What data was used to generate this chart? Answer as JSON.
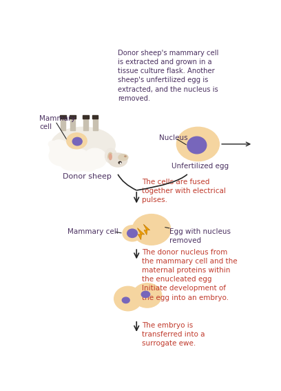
{
  "bg_color": "#ffffff",
  "purple": "#4a3060",
  "red": "#c0392b",
  "egg_outer": "#f5d5a0",
  "nuc_color": "#7766bb",
  "lightning_color": "#f0a000",
  "arrow_color": "#222222",
  "top_text": "Donor sheep's mammary cell\nis extracted and grown in a\ntissue culture flask. Another\nsheep's unfertilized egg is\nextracted, and the nucleus is\nremoved.",
  "mammary_cell_label": "Mammary\ncell",
  "donor_sheep_label": "Donor sheep",
  "nucleus_label": "Nucleus",
  "unfertilized_egg_label": "Unfertilized egg",
  "fused_text": "The cells are fused\ntogether with electrical\npulses.",
  "mammary_cell2_label": "Mammary cell",
  "egg_nucleus_removed_label": "Egg with nucleus\nremoved",
  "donor_nucleus_text": "The donor nucleus from\nthe mammary cell and the\nmaternal proteins within\nthe enucleated egg\nInitiate development of\nthe egg into an embryo.",
  "embryo_text": "The embryo is\ntransferred into a\nsurrogate ewe.",
  "sheep_body_color": "#f5f2ed",
  "sheep_head_color": "#e8e0d5",
  "sheep_leg_color": "#c0b8a8",
  "sheep_hoof_color": "#333333"
}
